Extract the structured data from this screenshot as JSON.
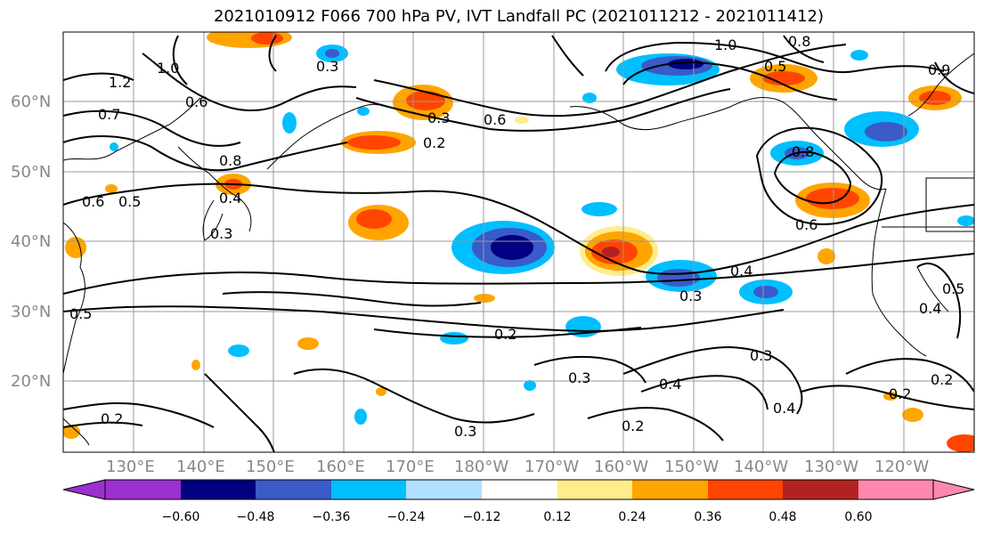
{
  "title": "2021010912 F066 700 hPa PV, IVT Landfall PC (2021011212 - 2021011412)",
  "map": {
    "lat_labels": [
      "60°N",
      "50°N",
      "40°N",
      "30°N",
      "20°N"
    ],
    "lon_labels": [
      "130°E",
      "140°E",
      "150°E",
      "160°E",
      "170°E",
      "180°W",
      "170°W",
      "160°W",
      "150°W",
      "140°W",
      "130°W",
      "120°W"
    ],
    "contour_labels": [
      "0.3",
      "1.0",
      "0.8",
      "1.2",
      "1.0",
      "0.9",
      "0.5",
      "0.6",
      "0.7",
      "0.6",
      "0.3",
      "0.2",
      "0.8",
      "0.6",
      "0.5",
      "0.8",
      "0.4",
      "0.6",
      "0.3",
      "0.4",
      "0.5",
      "0.3",
      "0.2",
      "0.3",
      "0.4",
      "0.3",
      "0.2",
      "0.2",
      "0.4",
      "0.2",
      "0.3",
      "0.2",
      "0.5",
      "0.4"
    ]
  },
  "colorbar": {
    "colors": [
      "#9b30d0",
      "#000080",
      "#3a5bc8",
      "#00bfff",
      "#b0e0ff",
      "#ffffff",
      "#ffec8b",
      "#ffa500",
      "#ff4500",
      "#b22222",
      "#ff88b0"
    ],
    "tick_labels": [
      "−0.60",
      "−0.48",
      "−0.36",
      "−0.24",
      "−0.12",
      "0.12",
      "0.24",
      "0.36",
      "0.48",
      "0.60"
    ]
  },
  "colors": {
    "contour": "#000000",
    "coast": "#000000",
    "grid": "#999999"
  }
}
